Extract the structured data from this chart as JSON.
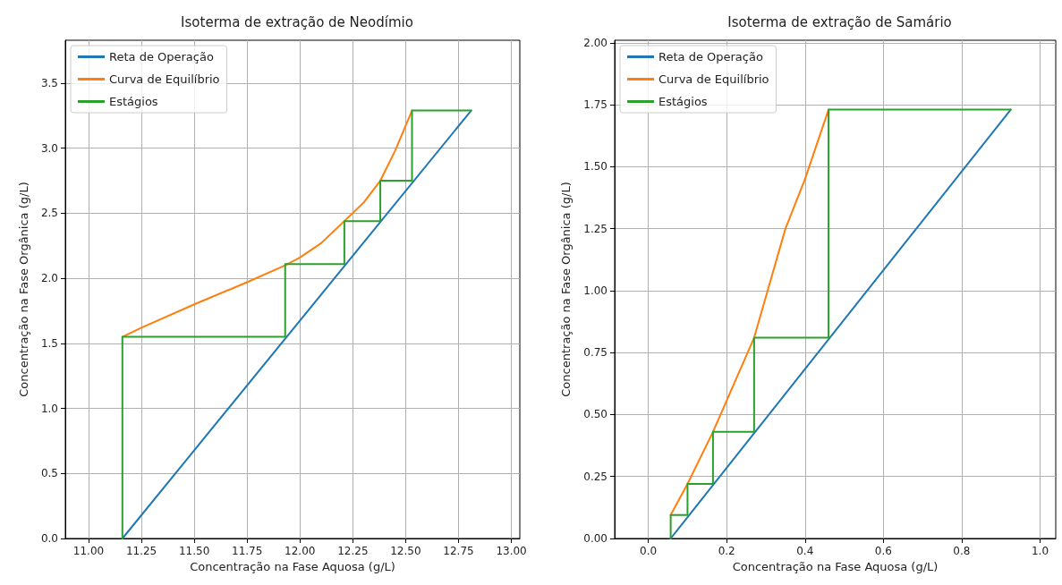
{
  "chart_data": [
    {
      "type": "line",
      "title": "Isoterma de extração de Neodímio",
      "xlabel": "Concentração na Fase Aquosa (g/L)",
      "ylabel": "Concentração na Fase Orgânica (g/L)",
      "xlim": [
        10.89,
        13.04
      ],
      "ylim": [
        0,
        3.83
      ],
      "xticks": [
        {
          "value": 11,
          "label": "11.00"
        },
        {
          "value": 11.25,
          "label": "11.25"
        },
        {
          "value": 11.5,
          "label": "11.50"
        },
        {
          "value": 11.75,
          "label": "11.75"
        },
        {
          "value": 12,
          "label": "12.00"
        },
        {
          "value": 12.25,
          "label": "12.25"
        },
        {
          "value": 12.5,
          "label": "12.50"
        },
        {
          "value": 12.75,
          "label": "12.75"
        },
        {
          "value": 13,
          "label": "13.00"
        }
      ],
      "yticks": [
        {
          "value": 0,
          "label": "0.0"
        },
        0.5,
        {
          "value": 1,
          "label": "1.0"
        },
        1.5,
        {
          "value": 2,
          "label": "2.0"
        },
        2.5,
        {
          "value": 3,
          "label": "3.0"
        },
        3.5
      ],
      "grid": true,
      "legend": "top left",
      "series": [
        {
          "name": "Reta de Operação",
          "color": "#1f77b4",
          "x": [
            11.16,
            12.81
          ],
          "values": [
            0,
            3.29
          ]
        },
        {
          "name": "Curva de Equilíbrio",
          "color": "#ff7f0e",
          "x": [
            11.16,
            11.25,
            11.5,
            11.75,
            11.93,
            12.0,
            12.1,
            12.21,
            12.3,
            12.38,
            12.45,
            12.53
          ],
          "values": [
            1.55,
            1.62,
            1.8,
            1.97,
            2.1,
            2.16,
            2.27,
            2.44,
            2.58,
            2.75,
            2.98,
            3.29
          ]
        },
        {
          "name": "Estágios",
          "color": "#2ca02c",
          "x": [
            12.81,
            12.53,
            12.53,
            12.38,
            12.38,
            12.21,
            12.21,
            11.93,
            11.93,
            11.16,
            11.16
          ],
          "values": [
            3.29,
            3.29,
            2.75,
            2.75,
            2.44,
            2.44,
            2.11,
            2.11,
            1.55,
            1.55,
            0
          ]
        }
      ]
    },
    {
      "type": "line",
      "title": "Isoterma de extração de Samário",
      "xlabel": "Concentração na Fase Aquosa (g/L)",
      "ylabel": "Concentração na Fase Orgânica (g/L)",
      "xlim": [
        -0.086,
        1.04
      ],
      "ylim": [
        0,
        2.01
      ],
      "xticks": [
        {
          "value": 0,
          "label": "0.0"
        },
        0.2,
        0.4,
        0.6,
        0.8,
        {
          "value": 1,
          "label": "1.0"
        }
      ],
      "yticks": [
        {
          "value": 0,
          "label": "0.00"
        },
        0.25,
        {
          "value": 0.5,
          "label": "0.50"
        },
        0.75,
        {
          "value": 1,
          "label": "1.00"
        },
        1.25,
        {
          "value": 1.5,
          "label": "1.50"
        },
        1.75,
        {
          "value": 2,
          "label": "2.00"
        }
      ],
      "grid": true,
      "legend": "top left",
      "series": [
        {
          "name": "Reta de Operação",
          "color": "#1f77b4",
          "x": [
            0.057,
            0.925
          ],
          "values": [
            0,
            1.73
          ]
        },
        {
          "name": "Curva de Equilíbrio",
          "color": "#ff7f0e",
          "x": [
            0.057,
            0.1,
            0.165,
            0.27,
            0.35,
            0.4,
            0.46
          ],
          "values": [
            0.095,
            0.22,
            0.43,
            0.81,
            1.25,
            1.45,
            1.73
          ]
        },
        {
          "name": "Estágios",
          "color": "#2ca02c",
          "x": [
            0.925,
            0.46,
            0.46,
            0.27,
            0.27,
            0.165,
            0.165,
            0.1,
            0.1,
            0.057,
            0.057
          ],
          "values": [
            1.73,
            1.73,
            0.81,
            0.81,
            0.43,
            0.43,
            0.22,
            0.22,
            0.095,
            0.095,
            0
          ]
        }
      ]
    }
  ]
}
